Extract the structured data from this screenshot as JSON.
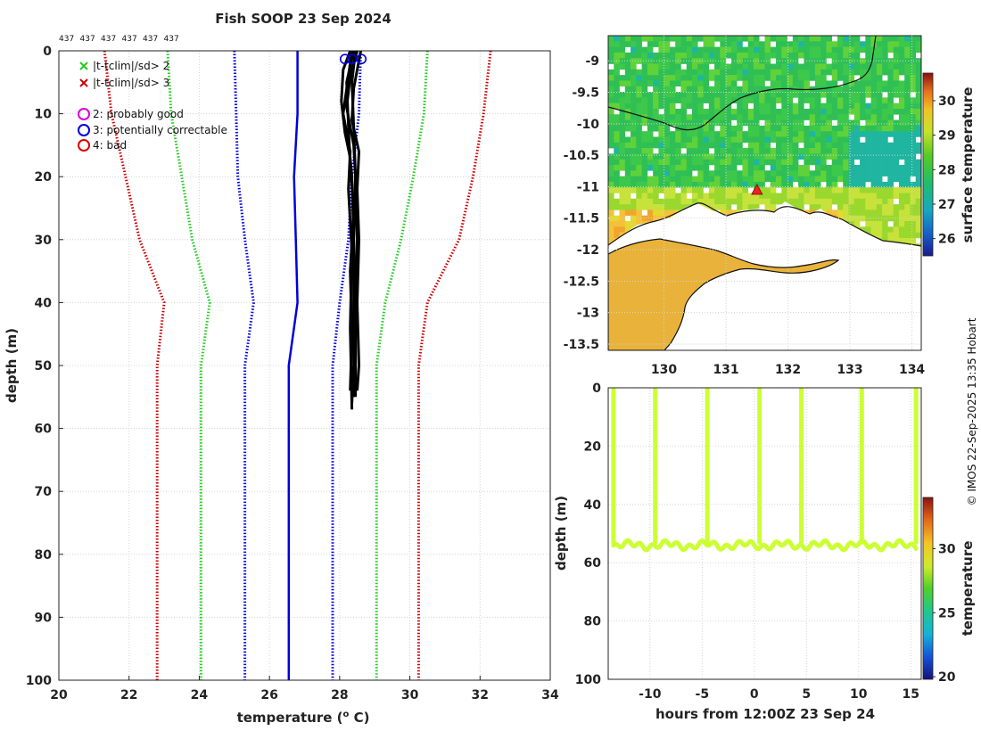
{
  "colors": {
    "profile": "#000000",
    "clim_mean": "#0000dd",
    "sd1": "#0000dd",
    "sd2": "#22cc22",
    "sd3": "#cc0000",
    "flag_good": "#dd00dd",
    "flag_correctable": "#0000dd",
    "flag_bad": "#dd0000",
    "land": "#ffffff",
    "sample_series": "#ccff33"
  },
  "chart_data": [
    {
      "id": "profile",
      "type": "line",
      "title": "Fish SOOP 23 Sep 2024",
      "top_labels": [
        "437",
        "437",
        "437",
        "437",
        "437",
        "437"
      ],
      "xlabel": "temperature (° C)",
      "xlabel_main": "temperature (",
      "xlabel_sup": "o",
      "xlabel_tail": " C)",
      "ylabel": "depth (m)",
      "xlim": [
        20,
        34
      ],
      "ylim": [
        100,
        0
      ],
      "xticks": [
        20,
        22,
        24,
        26,
        28,
        30,
        32,
        34
      ],
      "yticks": [
        0,
        10,
        20,
        30,
        40,
        50,
        60,
        70,
        80,
        90,
        100
      ],
      "grid": true,
      "legend": [
        {
          "marker": "x",
          "label": "|t-tclim|/sd> 2",
          "color": "#22cc22"
        },
        {
          "marker": "x",
          "label": "|t-tclim|/sd> 3",
          "color": "#cc0000"
        },
        {
          "marker": "o",
          "label": "2: probably good",
          "color": "#dd00dd"
        },
        {
          "marker": "o",
          "label": "3: potentially correctable",
          "color": "#0000dd"
        },
        {
          "marker": "o",
          "label": "4: bad",
          "color": "#dd0000"
        }
      ],
      "climatology": [
        {
          "name": "clim-mean",
          "style": "solid",
          "color": "#0000dd",
          "points": [
            [
              26.8,
              0
            ],
            [
              26.8,
              10
            ],
            [
              26.7,
              20
            ],
            [
              26.75,
              30
            ],
            [
              26.8,
              40
            ],
            [
              26.55,
              50
            ],
            [
              26.55,
              60
            ],
            [
              26.55,
              70
            ],
            [
              26.55,
              80
            ],
            [
              26.55,
              90
            ],
            [
              26.55,
              100
            ]
          ]
        },
        {
          "name": "clim-minus-1sd",
          "style": "dotted",
          "color": "#0000dd",
          "points": [
            [
              25.0,
              0
            ],
            [
              25.05,
              10
            ],
            [
              25.1,
              20
            ],
            [
              25.3,
              30
            ],
            [
              25.55,
              40
            ],
            [
              25.3,
              50
            ],
            [
              25.3,
              60
            ],
            [
              25.3,
              70
            ],
            [
              25.3,
              80
            ],
            [
              25.3,
              90
            ],
            [
              25.3,
              100
            ]
          ]
        },
        {
          "name": "clim-plus-1sd",
          "style": "dotted",
          "color": "#0000dd",
          "points": [
            [
              28.6,
              0
            ],
            [
              28.55,
              10
            ],
            [
              28.35,
              20
            ],
            [
              28.25,
              30
            ],
            [
              28.0,
              40
            ],
            [
              27.8,
              50
            ],
            [
              27.8,
              60
            ],
            [
              27.8,
              70
            ],
            [
              27.8,
              80
            ],
            [
              27.8,
              90
            ],
            [
              27.8,
              100
            ]
          ]
        },
        {
          "name": "clim-minus-2sd",
          "style": "dotted",
          "color": "#22cc22",
          "points": [
            [
              23.1,
              0
            ],
            [
              23.2,
              10
            ],
            [
              23.5,
              20
            ],
            [
              23.8,
              30
            ],
            [
              24.3,
              40
            ],
            [
              24.05,
              50
            ],
            [
              24.05,
              60
            ],
            [
              24.05,
              70
            ],
            [
              24.05,
              80
            ],
            [
              24.05,
              90
            ],
            [
              24.05,
              100
            ]
          ]
        },
        {
          "name": "clim-plus-2sd",
          "style": "dotted",
          "color": "#22cc22",
          "points": [
            [
              30.5,
              0
            ],
            [
              30.4,
              10
            ],
            [
              30.1,
              20
            ],
            [
              29.75,
              30
            ],
            [
              29.3,
              40
            ],
            [
              29.05,
              50
            ],
            [
              29.05,
              60
            ],
            [
              29.05,
              70
            ],
            [
              29.05,
              80
            ],
            [
              29.05,
              90
            ],
            [
              29.05,
              100
            ]
          ]
        },
        {
          "name": "clim-minus-3sd",
          "style": "dotted",
          "color": "#cc0000",
          "points": [
            [
              21.3,
              0
            ],
            [
              21.5,
              10
            ],
            [
              21.9,
              20
            ],
            [
              22.3,
              30
            ],
            [
              23.0,
              40
            ],
            [
              22.8,
              50
            ],
            [
              22.8,
              60
            ],
            [
              22.8,
              70
            ],
            [
              22.8,
              80
            ],
            [
              22.8,
              90
            ],
            [
              22.8,
              100
            ]
          ]
        },
        {
          "name": "clim-plus-3sd",
          "style": "dotted",
          "color": "#cc0000",
          "points": [
            [
              32.3,
              0
            ],
            [
              32.1,
              10
            ],
            [
              31.8,
              20
            ],
            [
              31.4,
              30
            ],
            [
              30.5,
              40
            ],
            [
              30.25,
              50
            ],
            [
              30.25,
              60
            ],
            [
              30.25,
              70
            ],
            [
              30.25,
              80
            ],
            [
              30.25,
              90
            ],
            [
              30.25,
              100
            ]
          ]
        }
      ],
      "profiles": [
        [
          [
            28.3,
            0
          ],
          [
            28.1,
            3
          ],
          [
            28.05,
            8
          ],
          [
            28.15,
            13
          ],
          [
            28.3,
            17
          ],
          [
            28.35,
            20
          ],
          [
            28.4,
            30
          ],
          [
            28.4,
            40
          ],
          [
            28.4,
            50
          ],
          [
            28.35,
            56
          ]
        ],
        [
          [
            28.5,
            0
          ],
          [
            28.3,
            4
          ],
          [
            28.2,
            9
          ],
          [
            28.4,
            15
          ],
          [
            28.45,
            20
          ],
          [
            28.5,
            30
          ],
          [
            28.45,
            40
          ],
          [
            28.45,
            50
          ],
          [
            28.45,
            55
          ]
        ],
        [
          [
            28.4,
            0
          ],
          [
            28.2,
            5
          ],
          [
            28.25,
            12
          ],
          [
            28.3,
            18
          ],
          [
            28.4,
            25
          ],
          [
            28.3,
            35
          ],
          [
            28.35,
            45
          ],
          [
            28.3,
            54
          ]
        ],
        [
          [
            28.6,
            0
          ],
          [
            28.4,
            6
          ],
          [
            28.35,
            11
          ],
          [
            28.55,
            16
          ],
          [
            28.5,
            22
          ],
          [
            28.55,
            30
          ],
          [
            28.5,
            40
          ],
          [
            28.55,
            50
          ],
          [
            28.5,
            54
          ]
        ],
        [
          [
            28.35,
            0
          ],
          [
            28.25,
            4
          ],
          [
            28.1,
            10
          ],
          [
            28.3,
            16
          ],
          [
            28.25,
            22
          ],
          [
            28.35,
            32
          ],
          [
            28.3,
            44
          ],
          [
            28.35,
            57
          ]
        ],
        [
          [
            28.45,
            0
          ],
          [
            28.35,
            5
          ],
          [
            28.4,
            12
          ],
          [
            28.45,
            20
          ],
          [
            28.4,
            30
          ],
          [
            28.45,
            45
          ],
          [
            28.4,
            55
          ]
        ]
      ],
      "flags": [
        {
          "value": 28.15,
          "depth": 0.6,
          "flag": 3
        },
        {
          "value": 28.35,
          "depth": 0.6,
          "flag": 3
        },
        {
          "value": 28.62,
          "depth": 0.6,
          "flag": 3
        }
      ]
    },
    {
      "id": "sst-map",
      "type": "heatmap",
      "colorbar_label": "surface temperature",
      "colorbar_range": [
        25.5,
        30.8
      ],
      "colorbar_ticks": [
        26,
        27,
        28,
        29,
        30
      ],
      "xlim": [
        129.1,
        134.15
      ],
      "ylim": [
        -13.6,
        -8.6
      ],
      "xticks": [
        130,
        131,
        132,
        133,
        134
      ],
      "yticks": [
        -9,
        -9.5,
        -10,
        -10.5,
        -11,
        -11.5,
        -12,
        -12.5,
        -13,
        -13.5
      ],
      "ytick_labels": [
        "-9",
        "-9.5",
        "-10",
        "-10.5",
        "-11",
        "-11.5",
        "-12",
        "-12.5",
        "-13",
        "-13.5"
      ],
      "marker": {
        "lon": 131.5,
        "lat": -11.05,
        "shape": "triangle",
        "color": "#ee2222"
      },
      "grid": true
    },
    {
      "id": "depth-time",
      "type": "scatter",
      "xlabel": "hours from 12:00Z 23 Sep 24",
      "ylabel": "depth (m)",
      "xlim": [
        -14,
        16
      ],
      "ylim": [
        100,
        0
      ],
      "xticks": [
        -10,
        -5,
        0,
        5,
        10,
        15
      ],
      "yticks": [
        0,
        20,
        40,
        60,
        80,
        100
      ],
      "colorbar_label": "temperature",
      "colorbar_range": [
        19.8,
        34
      ],
      "colorbar_ticks": [
        20,
        25,
        30
      ],
      "dive_hours": [
        -13.5,
        -9.5,
        -4.5,
        0.5,
        4.5,
        10.3,
        15.5
      ],
      "bottom_depth_range": [
        52,
        56
      ],
      "value_color": "#ccff33",
      "grid": true
    }
  ],
  "credit": "© IMOS 22-Sep-2025 13:35 Hobart"
}
